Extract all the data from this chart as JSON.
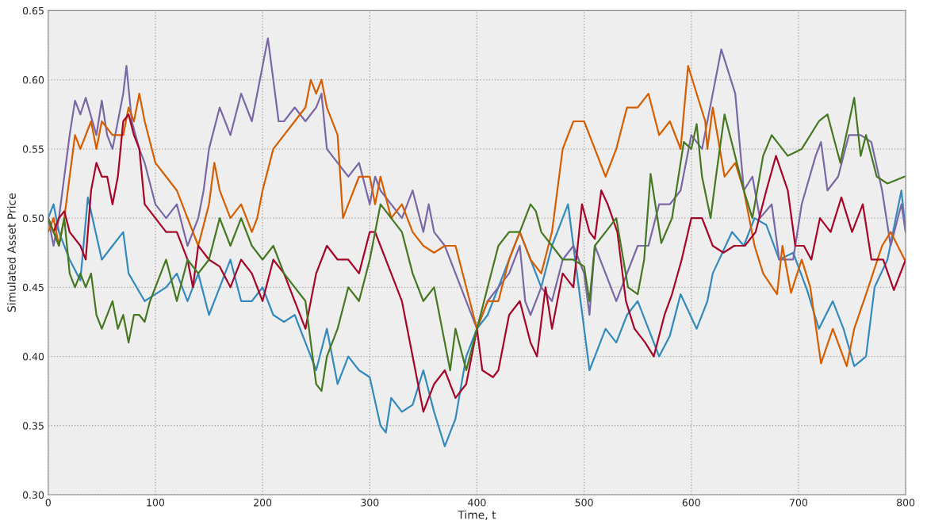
{
  "chart_data": {
    "type": "line",
    "xlabel": "Time, t",
    "ylabel": "Simulated Asset Price",
    "xlim": [
      0,
      800
    ],
    "xticks": [
      0,
      100,
      200,
      300,
      400,
      500,
      600,
      700,
      800
    ],
    "ylim": [
      0.3,
      0.65
    ],
    "yticks": [
      {
        "value": 0.3,
        "label": "0.30"
      },
      {
        "value": 0.35,
        "label": "0.35"
      },
      {
        "value": 0.4,
        "label": "0.40"
      },
      {
        "value": 0.45,
        "label": "0.45"
      },
      {
        "value": 0.5,
        "label": "0.50"
      },
      {
        "value": 0.55,
        "label": "0.55"
      },
      {
        "value": 0.6,
        "label": "0.60"
      },
      {
        "value": 0.65,
        "label": "0.65"
      }
    ],
    "grid": true,
    "line_style": "solid",
    "marker": "none",
    "series": [
      {
        "color": "#348abd",
        "x": [
          0,
          5,
          10,
          20,
          30,
          37,
          50,
          60,
          70,
          75,
          90,
          100,
          110,
          120,
          130,
          140,
          150,
          160,
          170,
          180,
          190,
          200,
          210,
          220,
          230,
          240,
          250,
          260,
          270,
          280,
          290,
          300,
          310,
          315,
          320,
          330,
          340,
          350,
          360,
          370,
          380,
          390,
          400,
          410,
          420,
          430,
          440,
          450,
          460,
          470,
          480,
          485,
          490,
          500,
          505,
          510,
          520,
          530,
          540,
          550,
          560,
          570,
          580,
          590,
          605,
          615,
          620,
          638,
          649,
          659,
          670,
          682,
          695,
          708,
          719,
          732,
          742,
          752,
          763,
          771,
          783,
          796,
          800
        ],
        "values": [
          0.5,
          0.51,
          0.49,
          0.47,
          0.455,
          0.515,
          0.47,
          0.48,
          0.49,
          0.46,
          0.44,
          0.445,
          0.45,
          0.46,
          0.44,
          0.46,
          0.43,
          0.45,
          0.47,
          0.44,
          0.44,
          0.45,
          0.43,
          0.425,
          0.43,
          0.41,
          0.39,
          0.42,
          0.38,
          0.4,
          0.39,
          0.385,
          0.35,
          0.345,
          0.37,
          0.36,
          0.365,
          0.39,
          0.36,
          0.335,
          0.355,
          0.4,
          0.42,
          0.43,
          0.45,
          0.47,
          0.49,
          0.47,
          0.45,
          0.48,
          0.5,
          0.51,
          0.48,
          0.42,
          0.39,
          0.4,
          0.42,
          0.41,
          0.43,
          0.44,
          0.42,
          0.4,
          0.415,
          0.445,
          0.42,
          0.44,
          0.46,
          0.49,
          0.48,
          0.5,
          0.495,
          0.47,
          0.475,
          0.448,
          0.42,
          0.44,
          0.42,
          0.393,
          0.4,
          0.45,
          0.47,
          0.52,
          0.49
        ]
      },
      {
        "color": "#7a68a6",
        "x": [
          0,
          5,
          10,
          15,
          20,
          25,
          30,
          35,
          45,
          50,
          55,
          60,
          70,
          73,
          78,
          85,
          90,
          100,
          110,
          120,
          130,
          140,
          145,
          150,
          160,
          170,
          180,
          190,
          200,
          205,
          210,
          215,
          220,
          230,
          240,
          250,
          255,
          260,
          270,
          280,
          290,
          300,
          305,
          310,
          320,
          330,
          340,
          350,
          355,
          360,
          370,
          380,
          390,
          400,
          410,
          420,
          430,
          440,
          445,
          450,
          460,
          470,
          480,
          490,
          500,
          505,
          510,
          520,
          530,
          540,
          550,
          560,
          570,
          580,
          590,
          600,
          610,
          620,
          628,
          641,
          649,
          657,
          664,
          675,
          682,
          695,
          703,
          716,
          721,
          727,
          737,
          747,
          758,
          768,
          778,
          786,
          796,
          800
        ],
        "values": [
          0.5,
          0.48,
          0.5,
          0.53,
          0.56,
          0.585,
          0.575,
          0.587,
          0.56,
          0.585,
          0.56,
          0.55,
          0.59,
          0.61,
          0.57,
          0.55,
          0.54,
          0.51,
          0.5,
          0.51,
          0.48,
          0.5,
          0.52,
          0.55,
          0.58,
          0.56,
          0.59,
          0.57,
          0.61,
          0.63,
          0.6,
          0.57,
          0.57,
          0.58,
          0.57,
          0.58,
          0.59,
          0.55,
          0.54,
          0.53,
          0.54,
          0.51,
          0.53,
          0.52,
          0.51,
          0.5,
          0.52,
          0.49,
          0.51,
          0.49,
          0.48,
          0.46,
          0.44,
          0.42,
          0.44,
          0.45,
          0.46,
          0.48,
          0.44,
          0.43,
          0.45,
          0.44,
          0.47,
          0.48,
          0.46,
          0.43,
          0.48,
          0.46,
          0.44,
          0.46,
          0.48,
          0.48,
          0.51,
          0.51,
          0.52,
          0.56,
          0.55,
          0.59,
          0.622,
          0.59,
          0.52,
          0.53,
          0.5,
          0.51,
          0.47,
          0.47,
          0.51,
          0.545,
          0.555,
          0.52,
          0.53,
          0.56,
          0.56,
          0.555,
          0.52,
          0.48,
          0.51,
          0.49
        ]
      },
      {
        "color": "#d55e00",
        "x": [
          0,
          5,
          10,
          15,
          20,
          25,
          30,
          40,
          45,
          50,
          60,
          70,
          75,
          80,
          85,
          90,
          100,
          110,
          120,
          130,
          140,
          150,
          155,
          160,
          170,
          180,
          190,
          195,
          200,
          210,
          220,
          230,
          240,
          245,
          250,
          255,
          260,
          270,
          275,
          280,
          290,
          300,
          305,
          310,
          320,
          330,
          340,
          350,
          360,
          370,
          380,
          390,
          400,
          410,
          420,
          430,
          440,
          450,
          460,
          470,
          480,
          490,
          500,
          510,
          520,
          530,
          540,
          550,
          560,
          570,
          580,
          590,
          597,
          613,
          615,
          620,
          631,
          641,
          649,
          659,
          667,
          680,
          685,
          693,
          703,
          711,
          721,
          732,
          745,
          752,
          763,
          778,
          786,
          799
        ],
        "values": [
          0.49,
          0.5,
          0.48,
          0.5,
          0.53,
          0.56,
          0.55,
          0.57,
          0.55,
          0.57,
          0.56,
          0.56,
          0.58,
          0.57,
          0.59,
          0.57,
          0.54,
          0.53,
          0.52,
          0.5,
          0.48,
          0.51,
          0.54,
          0.52,
          0.5,
          0.51,
          0.49,
          0.5,
          0.52,
          0.55,
          0.56,
          0.57,
          0.58,
          0.6,
          0.59,
          0.6,
          0.58,
          0.56,
          0.5,
          0.51,
          0.53,
          0.53,
          0.51,
          0.53,
          0.5,
          0.51,
          0.49,
          0.48,
          0.475,
          0.48,
          0.48,
          0.45,
          0.42,
          0.44,
          0.44,
          0.47,
          0.49,
          0.47,
          0.46,
          0.49,
          0.55,
          0.57,
          0.57,
          0.55,
          0.53,
          0.55,
          0.58,
          0.58,
          0.59,
          0.56,
          0.57,
          0.55,
          0.61,
          0.57,
          0.55,
          0.58,
          0.53,
          0.54,
          0.52,
          0.48,
          0.46,
          0.445,
          0.48,
          0.446,
          0.47,
          0.45,
          0.395,
          0.42,
          0.393,
          0.42,
          0.445,
          0.48,
          0.49,
          0.47
        ]
      },
      {
        "color": "#a60628",
        "x": [
          0,
          5,
          10,
          15,
          20,
          30,
          35,
          40,
          45,
          50,
          55,
          60,
          65,
          70,
          75,
          80,
          85,
          90,
          100,
          110,
          120,
          130,
          135,
          140,
          150,
          160,
          170,
          180,
          190,
          200,
          210,
          220,
          230,
          240,
          250,
          260,
          270,
          280,
          290,
          300,
          305,
          310,
          320,
          330,
          340,
          350,
          360,
          370,
          380,
          390,
          400,
          405,
          415,
          420,
          430,
          440,
          450,
          456,
          464,
          470,
          480,
          490,
          498,
          505,
          510,
          516,
          522,
          531,
          539,
          547,
          557,
          565,
          575,
          582,
          591,
          600,
          610,
          620,
          630,
          640,
          650,
          660,
          670,
          679,
          690,
          697,
          705,
          712,
          720,
          730,
          740,
          750,
          760,
          768,
          779,
          789,
          800
        ],
        "values": [
          0.5,
          0.49,
          0.5,
          0.505,
          0.49,
          0.48,
          0.47,
          0.52,
          0.54,
          0.53,
          0.53,
          0.51,
          0.53,
          0.57,
          0.575,
          0.56,
          0.55,
          0.51,
          0.5,
          0.49,
          0.49,
          0.47,
          0.45,
          0.48,
          0.47,
          0.465,
          0.45,
          0.47,
          0.46,
          0.44,
          0.47,
          0.46,
          0.44,
          0.42,
          0.46,
          0.48,
          0.47,
          0.47,
          0.46,
          0.49,
          0.49,
          0.48,
          0.46,
          0.44,
          0.4,
          0.36,
          0.38,
          0.39,
          0.37,
          0.38,
          0.42,
          0.39,
          0.385,
          0.39,
          0.43,
          0.44,
          0.41,
          0.4,
          0.45,
          0.42,
          0.46,
          0.45,
          0.51,
          0.49,
          0.485,
          0.52,
          0.51,
          0.49,
          0.44,
          0.42,
          0.41,
          0.4,
          0.43,
          0.445,
          0.47,
          0.5,
          0.5,
          0.48,
          0.475,
          0.48,
          0.48,
          0.49,
          0.52,
          0.545,
          0.52,
          0.48,
          0.48,
          0.47,
          0.5,
          0.49,
          0.515,
          0.49,
          0.51,
          0.47,
          0.47,
          0.448,
          0.47
        ]
      },
      {
        "color": "#467821",
        "x": [
          0,
          5,
          10,
          15,
          20,
          25,
          30,
          35,
          40,
          45,
          50,
          60,
          65,
          70,
          75,
          80,
          85,
          90,
          95,
          100,
          110,
          120,
          130,
          140,
          150,
          160,
          170,
          180,
          190,
          200,
          210,
          220,
          230,
          240,
          250,
          255,
          260,
          270,
          280,
          290,
          300,
          310,
          320,
          330,
          340,
          350,
          360,
          365,
          370,
          375,
          380,
          390,
          400,
          410,
          420,
          430,
          440,
          450,
          455,
          460,
          470,
          480,
          490,
          500,
          505,
          510,
          520,
          530,
          541,
          550,
          556,
          562,
          572,
          582,
          593,
          600,
          605,
          610,
          618,
          623,
          631,
          636,
          649,
          657,
          667,
          675,
          690,
          703,
          719,
          727,
          739,
          752,
          758,
          763,
          773,
          783,
          799
        ],
        "values": [
          0.5,
          0.49,
          0.48,
          0.5,
          0.46,
          0.45,
          0.46,
          0.45,
          0.46,
          0.43,
          0.42,
          0.44,
          0.42,
          0.43,
          0.41,
          0.43,
          0.43,
          0.425,
          0.44,
          0.45,
          0.47,
          0.44,
          0.47,
          0.46,
          0.47,
          0.5,
          0.48,
          0.5,
          0.48,
          0.47,
          0.48,
          0.46,
          0.45,
          0.44,
          0.38,
          0.375,
          0.4,
          0.42,
          0.45,
          0.44,
          0.47,
          0.51,
          0.5,
          0.49,
          0.46,
          0.44,
          0.45,
          0.43,
          0.41,
          0.39,
          0.42,
          0.39,
          0.42,
          0.45,
          0.48,
          0.49,
          0.49,
          0.51,
          0.505,
          0.49,
          0.48,
          0.47,
          0.47,
          0.465,
          0.44,
          0.48,
          0.49,
          0.5,
          0.45,
          0.445,
          0.47,
          0.532,
          0.482,
          0.5,
          0.555,
          0.55,
          0.568,
          0.53,
          0.5,
          0.53,
          0.575,
          0.56,
          0.52,
          0.5,
          0.545,
          0.56,
          0.545,
          0.55,
          0.57,
          0.575,
          0.54,
          0.587,
          0.545,
          0.56,
          0.53,
          0.525,
          0.53
        ]
      }
    ]
  }
}
